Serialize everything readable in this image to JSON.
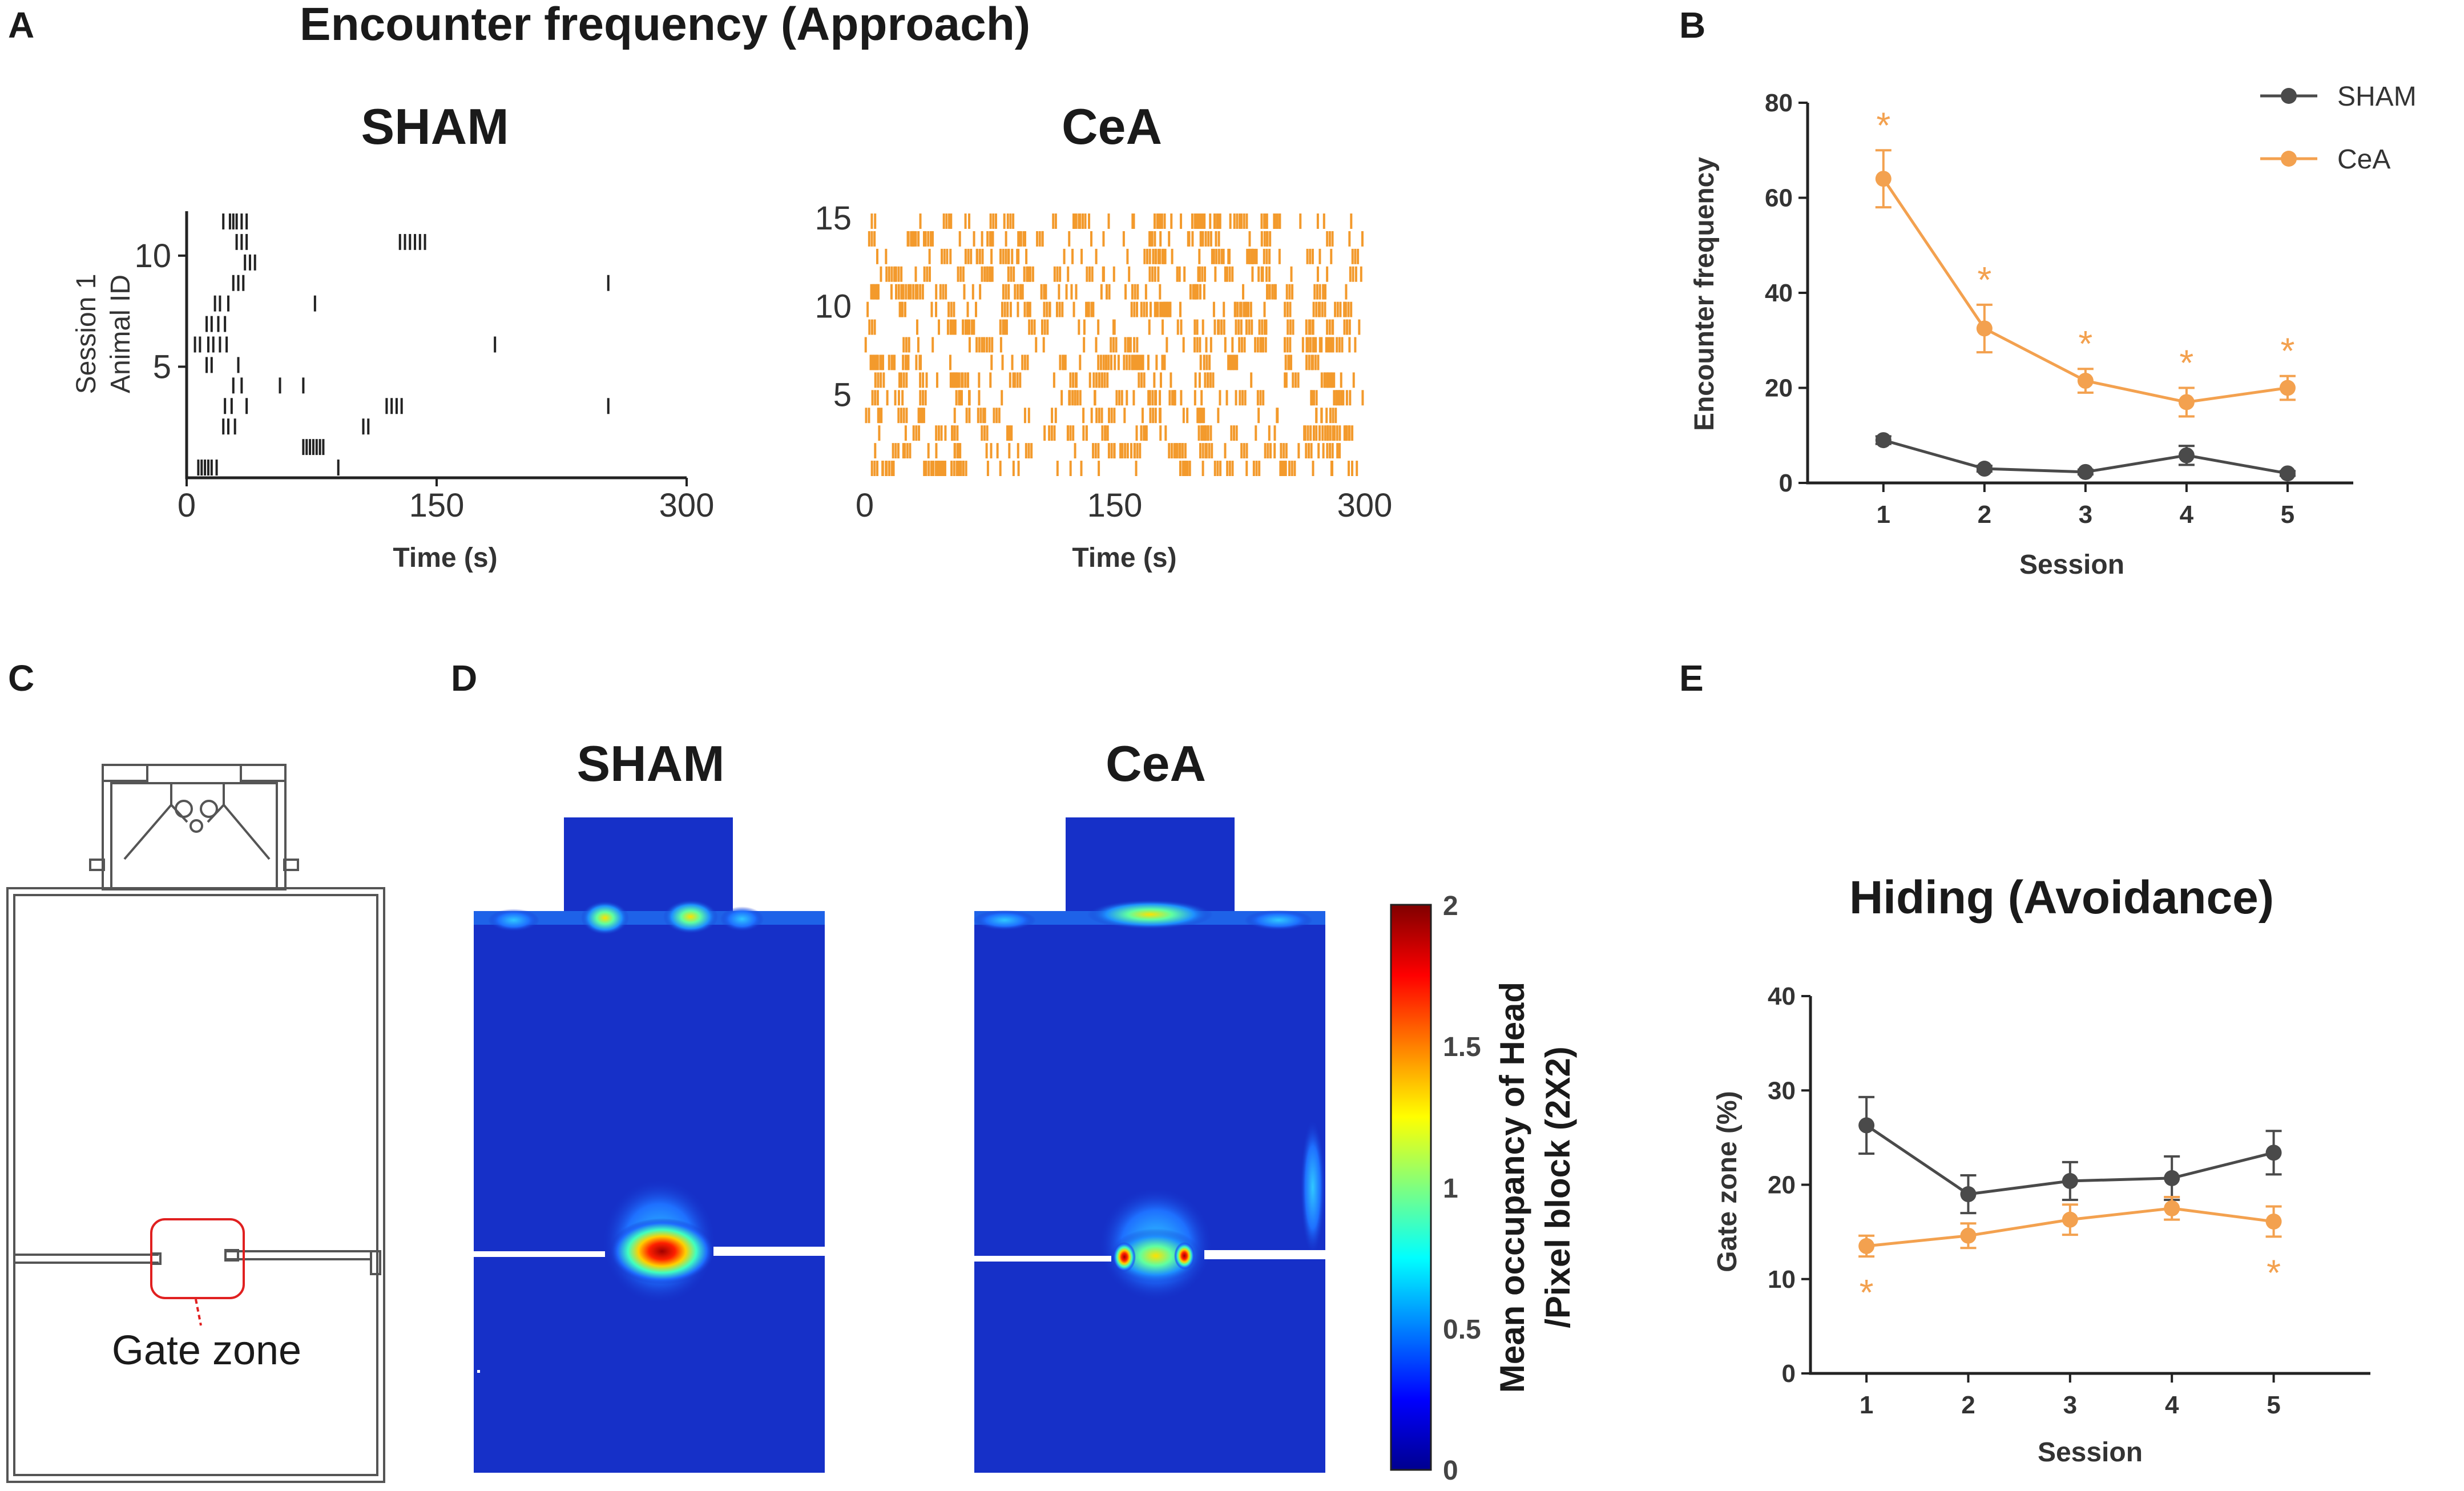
{
  "panel_labels": {
    "a": "A",
    "b": "B",
    "c": "C",
    "d": "D",
    "e": "E"
  },
  "colors": {
    "sham": "#4a4a4a",
    "cea": "#f3a14f",
    "raster_sham": "#222222",
    "raster_cea": "#f39a2c"
  },
  "chart_data": [
    {
      "id": "A",
      "type": "raster",
      "title": "Encounter frequency (Approach)",
      "subplots": [
        {
          "subtitle": "SHAM",
          "xlabel": "Time (s)",
          "ylabel": [
            "Session 1",
            "Animal ID"
          ],
          "xlim": [
            0,
            300
          ],
          "ylim": [
            0,
            12
          ],
          "xticks": [
            0,
            150,
            300
          ],
          "yticks": [
            5,
            10
          ],
          "rows": [
            [
              22,
              26,
              28,
              30,
              33,
              36
            ],
            [
              30,
              33,
              36,
              128,
              131,
              134,
              137,
              140,
              143
            ],
            [
              35,
              38,
              41
            ],
            [
              28,
              31,
              34,
              253
            ],
            [
              17,
              20,
              25,
              77
            ],
            [
              12,
              15,
              19,
              23
            ],
            [
              5,
              8,
              13,
              16,
              20,
              24,
              185
            ],
            [
              12,
              15,
              31
            ],
            [
              28,
              33,
              56,
              70
            ],
            [
              23,
              27,
              36,
              120,
              123,
              126,
              129,
              253
            ],
            [
              22,
              25,
              29,
              106,
              109
            ],
            [
              70,
              72,
              74,
              76,
              78,
              80,
              82
            ],
            [
              7,
              9,
              11,
              13,
              15,
              18,
              91
            ]
          ]
        },
        {
          "subtitle": "CeA",
          "xlabel": "Time (s)",
          "xlim": [
            0,
            300
          ],
          "ylim": [
            0,
            15
          ],
          "xticks": [
            0,
            150,
            300
          ],
          "yticks": [
            5,
            10,
            15
          ],
          "n_rows": 15,
          "events_per_row": 44
        }
      ]
    },
    {
      "id": "B",
      "type": "line",
      "xlabel": "Session",
      "ylabel": "Encounter frequency",
      "x": [
        1,
        2,
        3,
        4,
        5
      ],
      "ylim": [
        0,
        80
      ],
      "yticks": [
        0,
        20,
        40,
        60,
        80
      ],
      "series": [
        {
          "name": "SHAM",
          "values": [
            9,
            3,
            2.3,
            5.8,
            2
          ],
          "err": [
            0.8,
            0.6,
            0.5,
            2.0,
            0.5
          ]
        },
        {
          "name": "CeA",
          "values": [
            64,
            32.5,
            21.5,
            17,
            20
          ],
          "err": [
            6,
            5,
            2.5,
            3,
            2.5
          ]
        }
      ],
      "significance": {
        "series": "CeA",
        "sessions": [
          1,
          2,
          3,
          4,
          5
        ],
        "marker": "*"
      },
      "legend": "top-right"
    },
    {
      "id": "D",
      "type": "heatmap",
      "subtitles": [
        "SHAM",
        "CeA"
      ],
      "colorbar": {
        "label": [
          "Mean occupancy of Head",
          "/Pixel block (2X2)"
        ],
        "range": [
          0,
          2
        ],
        "ticks": [
          "0",
          "0.5",
          "1",
          "1.5",
          "2"
        ]
      }
    },
    {
      "id": "E",
      "type": "line",
      "title": "Hiding (Avoidance)",
      "xlabel": "Session",
      "ylabel": "Gate zone (%)",
      "x": [
        1,
        2,
        3,
        4,
        5
      ],
      "ylim": [
        0,
        40
      ],
      "yticks": [
        0,
        10,
        20,
        30,
        40
      ],
      "series": [
        {
          "name": "SHAM",
          "values": [
            26.3,
            19,
            20.4,
            20.7,
            23.4
          ],
          "err": [
            3,
            2,
            2,
            2.3,
            2.3
          ]
        },
        {
          "name": "CeA",
          "values": [
            13.5,
            14.6,
            16.3,
            17.5,
            16.1
          ],
          "err": [
            1.1,
            1.3,
            1.6,
            1.2,
            1.6
          ]
        }
      ],
      "significance": {
        "series": "CeA",
        "sessions": [
          1,
          5
        ],
        "marker": "*"
      }
    }
  ],
  "panel_c": {
    "zone_label": "Gate zone"
  }
}
